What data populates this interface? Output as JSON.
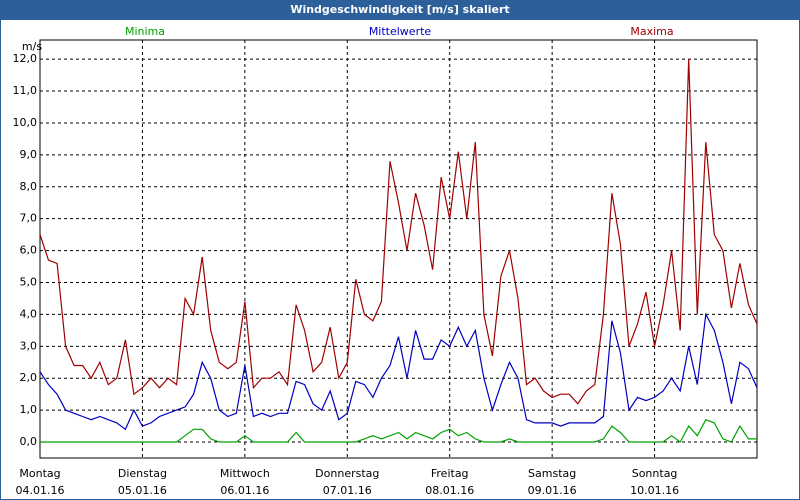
{
  "chart_data": {
    "type": "line",
    "title": "Windgeschwindigkeit [m/s] skaliert",
    "y_unit": "m/s",
    "x": [
      0,
      2,
      4,
      6,
      8,
      10,
      12,
      14,
      16,
      18,
      20,
      22,
      24,
      26,
      28,
      30,
      32,
      34,
      36,
      38,
      40,
      42,
      44,
      46,
      48,
      50,
      52,
      54,
      56,
      58,
      60,
      62,
      64,
      66,
      68,
      70,
      72,
      74,
      76,
      78,
      80,
      82,
      84,
      86,
      88,
      90,
      92,
      94,
      96,
      98,
      100,
      102,
      104,
      106,
      108,
      110,
      112,
      114,
      116,
      118,
      120,
      122,
      124,
      126,
      128,
      130,
      132,
      134,
      136,
      138,
      140,
      142,
      144,
      146,
      148,
      150,
      152,
      154,
      156,
      158,
      160,
      162,
      164,
      166,
      168
    ],
    "xlim": [
      0,
      168
    ],
    "xticks": [
      {
        "value": 0,
        "label": "Montag"
      },
      {
        "value": 24,
        "label": "Dienstag"
      },
      {
        "value": 48,
        "label": "Mittwoch"
      },
      {
        "value": 72,
        "label": "Donnerstag"
      },
      {
        "value": 96,
        "label": "Freitag"
      },
      {
        "value": 120,
        "label": "Samstag"
      },
      {
        "value": 144,
        "label": "Sonntag"
      }
    ],
    "xtick_dates": [
      "04.01.16",
      "05.01.16",
      "06.01.16",
      "07.01.16",
      "08.01.16",
      "09.01.16",
      "10.01.16"
    ],
    "ylim": [
      -0.5,
      12.6
    ],
    "yticks": [
      {
        "value": 0,
        "label": "0,0"
      },
      {
        "value": 1,
        "label": "1,0"
      },
      {
        "value": 2,
        "label": "2,0"
      },
      {
        "value": 3,
        "label": "3,0"
      },
      {
        "value": 4,
        "label": "4,0"
      },
      {
        "value": 5,
        "label": "5,0"
      },
      {
        "value": 6,
        "label": "6,0"
      },
      {
        "value": 7,
        "label": "7,0"
      },
      {
        "value": 8,
        "label": "8,0"
      },
      {
        "value": 9,
        "label": "9,0"
      },
      {
        "value": 10,
        "label": "10,0"
      },
      {
        "value": 11,
        "label": "11,0"
      },
      {
        "value": 12,
        "label": "12,0"
      }
    ],
    "grid": true,
    "series": [
      {
        "name": "Minima",
        "color": "#00a000",
        "values": [
          0,
          0,
          0,
          0,
          0,
          0,
          0,
          0,
          0,
          0,
          0,
          0,
          0,
          0,
          0,
          0,
          0,
          0.2,
          0.4,
          0.4,
          0.1,
          0,
          0,
          0,
          0.2,
          0,
          0,
          0,
          0,
          0,
          0.3,
          0,
          0,
          0,
          0,
          0,
          0,
          0,
          0.1,
          0.2,
          0.1,
          0.2,
          0.3,
          0.1,
          0.3,
          0.2,
          0.1,
          0.3,
          0.4,
          0.2,
          0.3,
          0.1,
          0,
          0,
          0,
          0.1,
          0,
          0,
          0,
          0,
          0,
          0,
          0,
          0,
          0,
          0,
          0.1,
          0.5,
          0.3,
          0,
          0,
          0,
          0,
          0,
          0.2,
          0,
          0.5,
          0.2,
          0.7,
          0.6,
          0.1,
          0,
          0.5,
          0.1,
          0.1
        ]
      },
      {
        "name": "Mittelwerte",
        "color": "#0000c0",
        "values": [
          2.2,
          1.8,
          1.5,
          1.0,
          0.9,
          0.8,
          0.7,
          0.8,
          0.7,
          0.6,
          0.4,
          1.0,
          0.5,
          0.6,
          0.8,
          0.9,
          1.0,
          1.1,
          1.5,
          2.5,
          2.0,
          1.0,
          0.8,
          0.9,
          2.4,
          0.8,
          0.9,
          0.8,
          0.9,
          0.9,
          1.9,
          1.8,
          1.2,
          1.0,
          1.6,
          0.7,
          0.9,
          1.9,
          1.8,
          1.4,
          2.0,
          2.4,
          3.3,
          2.0,
          3.5,
          2.6,
          2.6,
          3.2,
          3.0,
          3.6,
          3.0,
          3.5,
          2.0,
          1.0,
          1.8,
          2.5,
          2.0,
          0.7,
          0.6,
          0.6,
          0.6,
          0.5,
          0.6,
          0.6,
          0.6,
          0.6,
          0.8,
          3.8,
          2.8,
          1.0,
          1.4,
          1.3,
          1.4,
          1.6,
          2.0,
          1.6,
          3.0,
          1.8,
          4.0,
          3.5,
          2.5,
          1.2,
          2.5,
          2.3,
          1.7
        ]
      },
      {
        "name": "Maxima",
        "color": "#a00000",
        "values": [
          6.5,
          5.7,
          5.6,
          3.0,
          2.4,
          2.4,
          2.0,
          2.5,
          1.8,
          2.0,
          3.2,
          1.5,
          1.7,
          2.0,
          1.7,
          2.0,
          1.8,
          4.5,
          4.0,
          5.8,
          3.5,
          2.5,
          2.3,
          2.5,
          4.4,
          1.7,
          2.0,
          2.0,
          2.2,
          1.8,
          4.3,
          3.5,
          2.2,
          2.5,
          3.6,
          2.0,
          2.5,
          5.1,
          4.0,
          3.8,
          4.4,
          8.8,
          7.5,
          6.0,
          7.8,
          6.8,
          5.4,
          8.3,
          7.0,
          9.1,
          7.0,
          9.4,
          4.0,
          2.7,
          5.2,
          6.0,
          4.5,
          1.8,
          2.0,
          1.6,
          1.4,
          1.5,
          1.5,
          1.2,
          1.6,
          1.8,
          4.0,
          7.8,
          6.2,
          3.0,
          3.7,
          4.7,
          3.0,
          4.3,
          6.0,
          3.5,
          12.0,
          4.0,
          9.4,
          6.5,
          6.0,
          4.2,
          5.6,
          4.3,
          3.7
        ]
      }
    ]
  }
}
